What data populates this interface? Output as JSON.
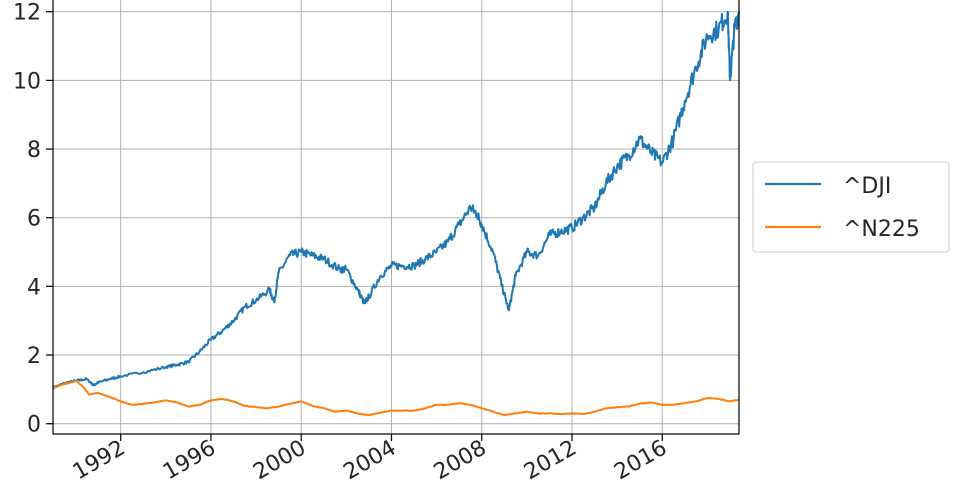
{
  "chart_data": {
    "type": "line",
    "title": "",
    "xlabel": "",
    "ylabel": "",
    "xlim": [
      1989.0,
      2019.4
    ],
    "ylim": [
      -0.3,
      12.4
    ],
    "grid": true,
    "legend_position": "center-right-outside",
    "x_ticks": [
      {
        "value": 1992,
        "label": "1992"
      },
      {
        "value": 1996,
        "label": "1996"
      },
      {
        "value": 2000,
        "label": "2000"
      },
      {
        "value": 2004,
        "label": "2004"
      },
      {
        "value": 2008,
        "label": "2008"
      },
      {
        "value": 2012,
        "label": "2012"
      },
      {
        "value": 2016,
        "label": "2016"
      }
    ],
    "y_ticks": [
      {
        "value": 0,
        "label": "0"
      },
      {
        "value": 2,
        "label": "2"
      },
      {
        "value": 4,
        "label": "4"
      },
      {
        "value": 6,
        "label": "6"
      },
      {
        "value": 8,
        "label": "8"
      },
      {
        "value": 10,
        "label": "10"
      },
      {
        "value": 12,
        "label": "12"
      }
    ],
    "series": [
      {
        "name": "^DJI",
        "color": "#1f77b4",
        "x": [
          1989.0,
          1989.5,
          1990.0,
          1990.5,
          1990.8,
          1991.0,
          1991.5,
          1992.0,
          1993.0,
          1994.0,
          1994.5,
          1995.0,
          1995.5,
          1996.0,
          1996.5,
          1997.0,
          1997.5,
          1998.0,
          1998.6,
          1998.8,
          1999.0,
          1999.5,
          2000.0,
          2000.5,
          2001.0,
          2001.7,
          2002.0,
          2002.5,
          2002.8,
          2003.0,
          2003.5,
          2004.0,
          2004.5,
          2005.0,
          2005.5,
          2006.0,
          2006.5,
          2007.0,
          2007.5,
          2007.8,
          2008.0,
          2008.5,
          2008.9,
          2009.2,
          2009.5,
          2010.0,
          2010.5,
          2011.0,
          2011.5,
          2012.0,
          2012.5,
          2013.0,
          2013.5,
          2014.0,
          2014.5,
          2015.0,
          2015.5,
          2016.0,
          2016.5,
          2017.0,
          2017.5,
          2018.0,
          2018.5,
          2018.9,
          2019.0,
          2019.2,
          2019.4
        ],
        "y": [
          1.05,
          1.18,
          1.25,
          1.3,
          1.12,
          1.2,
          1.3,
          1.38,
          1.5,
          1.65,
          1.72,
          1.8,
          2.1,
          2.45,
          2.7,
          3.0,
          3.4,
          3.6,
          3.9,
          3.55,
          4.4,
          4.9,
          5.0,
          4.9,
          4.8,
          4.5,
          4.5,
          3.9,
          3.5,
          3.7,
          4.3,
          4.6,
          4.6,
          4.6,
          4.8,
          5.0,
          5.3,
          5.8,
          6.3,
          6.1,
          5.8,
          5.0,
          4.0,
          3.3,
          4.3,
          5.0,
          4.9,
          5.5,
          5.6,
          5.7,
          6.0,
          6.3,
          7.0,
          7.5,
          7.8,
          8.3,
          7.9,
          7.6,
          8.3,
          9.4,
          10.4,
          11.3,
          11.5,
          12.0,
          10.0,
          11.5,
          12.0
        ]
      },
      {
        "name": "^N225",
        "color": "#ff7f0e",
        "x": [
          1989.0,
          1989.5,
          1990.0,
          1990.3,
          1990.6,
          1991.0,
          1991.5,
          1992.0,
          1992.5,
          1993.0,
          1993.5,
          1994.0,
          1994.5,
          1995.0,
          1995.5,
          1996.0,
          1996.5,
          1997.0,
          1997.5,
          1998.0,
          1998.5,
          1999.0,
          1999.5,
          2000.0,
          2000.5,
          2001.0,
          2001.5,
          2002.0,
          2002.5,
          2003.0,
          2003.5,
          2004.0,
          2004.5,
          2005.0,
          2005.5,
          2006.0,
          2006.5,
          2007.0,
          2007.5,
          2008.0,
          2008.5,
          2009.0,
          2009.5,
          2010.0,
          2010.5,
          2011.0,
          2011.5,
          2012.0,
          2012.5,
          2013.0,
          2013.5,
          2014.0,
          2014.5,
          2015.0,
          2015.5,
          2016.0,
          2016.5,
          2017.0,
          2017.5,
          2018.0,
          2018.5,
          2019.0,
          2019.4
        ],
        "y": [
          1.05,
          1.15,
          1.25,
          1.1,
          0.85,
          0.9,
          0.78,
          0.65,
          0.55,
          0.58,
          0.62,
          0.68,
          0.62,
          0.5,
          0.55,
          0.68,
          0.72,
          0.65,
          0.52,
          0.48,
          0.45,
          0.5,
          0.58,
          0.65,
          0.52,
          0.45,
          0.35,
          0.38,
          0.3,
          0.25,
          0.32,
          0.38,
          0.38,
          0.38,
          0.45,
          0.55,
          0.55,
          0.6,
          0.55,
          0.45,
          0.35,
          0.25,
          0.3,
          0.35,
          0.3,
          0.3,
          0.28,
          0.3,
          0.28,
          0.35,
          0.45,
          0.48,
          0.5,
          0.58,
          0.62,
          0.55,
          0.55,
          0.6,
          0.65,
          0.75,
          0.72,
          0.65,
          0.7
        ]
      }
    ]
  }
}
